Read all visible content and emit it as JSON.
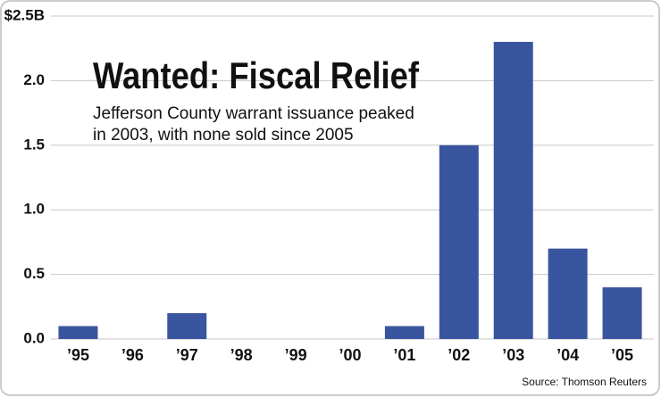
{
  "chart_data": {
    "type": "bar",
    "title": "Wanted: Fiscal Relief",
    "subtitle": [
      "Jefferson County warrant issuance peaked",
      "in 2003, with none sold since 2005"
    ],
    "source": "Source: Thomson Reuters",
    "categories": [
      "’95",
      "’96",
      "’97",
      "’98",
      "’99",
      "’00",
      "’01",
      "’02",
      "’03",
      "’04",
      "’05"
    ],
    "values": [
      0.1,
      0,
      0.2,
      0,
      0,
      0,
      0.1,
      1.5,
      2.3,
      0.7,
      0.4
    ],
    "color": "#3a559f",
    "ylim": [
      0,
      2.5
    ],
    "yticks": [
      {
        "value": 0,
        "label": "0.0"
      },
      0.5,
      {
        "value": 1,
        "label": "1.0"
      },
      1.5,
      {
        "value": 2,
        "label": "2.0"
      },
      {
        "value": 2.5,
        "label": "$2.5B"
      }
    ],
    "grid": true
  }
}
